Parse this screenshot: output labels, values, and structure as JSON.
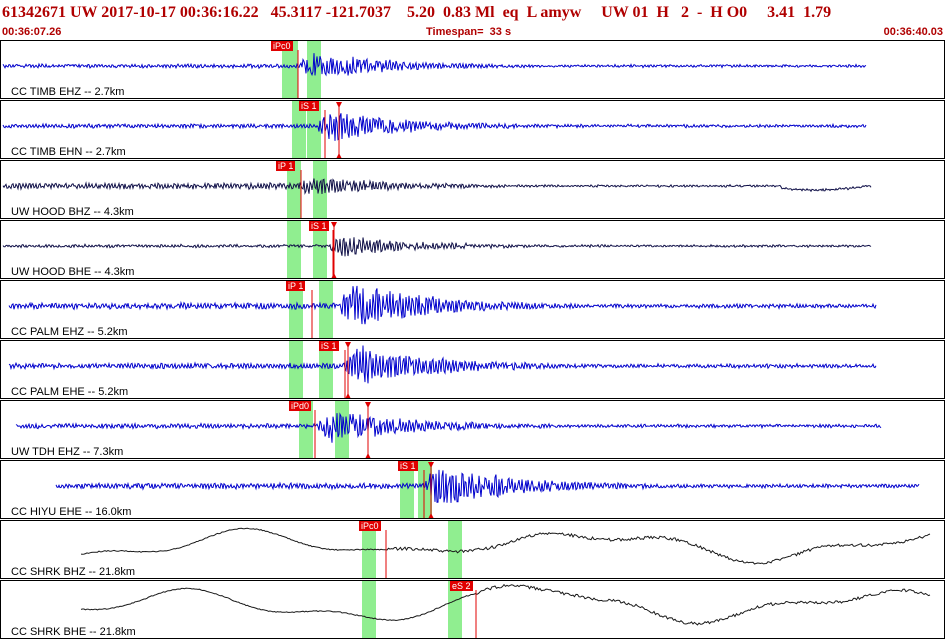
{
  "header": {
    "title": "61342671 UW 2017-10-17 00:36:16.22   45.3117 -121.7037    5.20  0.83 Ml  eq  L amyw     UW 01  H   2  -  H O0     3.41  1.79",
    "start_time": "00:36:07.26",
    "timespan": "Timespan=  33 s",
    "end_time": "00:36:40.03"
  },
  "colors": {
    "header_text": "#b00000",
    "trace_blue": "#0000cc",
    "trace_dark": "#101048",
    "trace_black": "#1a1a1a",
    "window_green": "#90ee90",
    "pick_red": "#e00000"
  },
  "panels": [
    {
      "label": "CC TIMB EHZ -- 2.7km",
      "trace_color": "blue",
      "picks": [
        {
          "text": "iPc0"
        }
      ],
      "marker": ""
    },
    {
      "label": "CC TIMB EHN -- 2.7km",
      "trace_color": "blue",
      "picks": [
        {
          "text": "iS 1"
        }
      ],
      "marker": "triangle"
    },
    {
      "label": "UW HOOD BHZ -- 4.3km",
      "trace_color": "dark",
      "picks": [
        {
          "text": "iP 1"
        }
      ],
      "marker": ""
    },
    {
      "label": "UW HOOD BHE -- 4.3km",
      "trace_color": "dark",
      "picks": [
        {
          "text": "iS 1"
        }
      ],
      "marker": "triangle"
    },
    {
      "label": "CC PALM EHZ -- 5.2km",
      "trace_color": "blue",
      "picks": [
        {
          "text": "iP 1"
        }
      ],
      "marker": ""
    },
    {
      "label": "CC PALM EHE -- 5.2km",
      "trace_color": "blue",
      "picks": [
        {
          "text": "iS 1"
        }
      ],
      "marker": "triangle"
    },
    {
      "label": "UW TDH EHZ -- 7.3km",
      "trace_color": "blue",
      "picks": [
        {
          "text": "iPd0"
        }
      ],
      "marker": "triangle"
    },
    {
      "label": "CC HIYU EHE -- 16.0km",
      "trace_color": "blue",
      "picks": [
        {
          "text": "iS 1"
        }
      ],
      "marker": "triangle"
    },
    {
      "label": "CC SHRK BHZ -- 21.8km",
      "trace_color": "black",
      "picks": [
        {
          "text": "iPc0"
        }
      ],
      "marker": ""
    },
    {
      "label": "CC SHRK BHE -- 21.8km",
      "trace_color": "black",
      "picks": [
        {
          "text": "eS 2"
        }
      ],
      "marker": ""
    }
  ]
}
